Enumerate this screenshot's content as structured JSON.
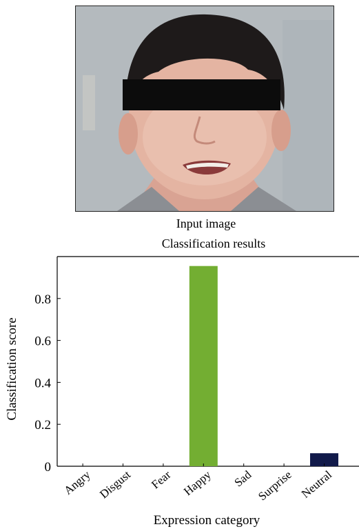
{
  "figure": {
    "input_caption": "Input image"
  },
  "colors": {
    "happy_bar": "#73ae32",
    "neutral_bar": "#111a4a",
    "axis": "#000000"
  },
  "chart_data": {
    "type": "bar",
    "title": "Classification results",
    "xlabel": "Expression category",
    "ylabel": "Classification score",
    "categories": [
      "Angry",
      "Disgust",
      "Fear",
      "Happy",
      "Sad",
      "Surprise",
      "Neutral"
    ],
    "values": [
      0,
      0,
      0,
      0.955,
      0,
      0,
      0.062
    ],
    "bar_colors": [
      "#73ae32",
      "#73ae32",
      "#73ae32",
      "#73ae32",
      "#73ae32",
      "#73ae32",
      "#111a4a"
    ],
    "ylim": [
      0,
      1
    ],
    "yticks": [
      0,
      0.2,
      0.4,
      0.6,
      0.8
    ],
    "ytick_labels": [
      "0",
      "0.2",
      "0.4",
      "0.6",
      "0.8"
    ],
    "grid": false,
    "legend": "none"
  }
}
